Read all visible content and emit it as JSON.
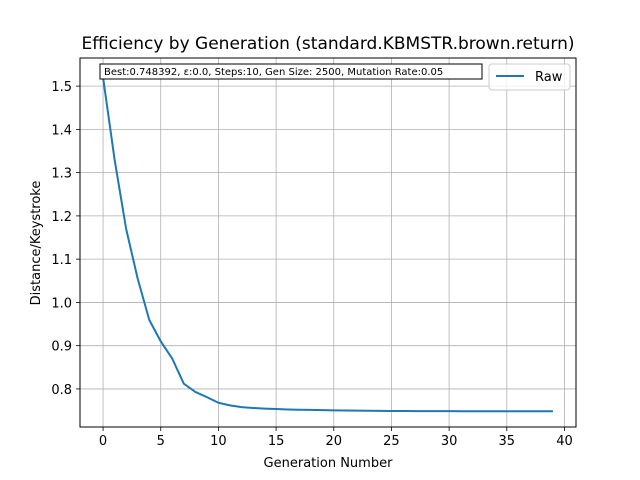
{
  "chart_data": {
    "type": "line",
    "title": "Efficiency by Generation (standard.KBMSTR.brown.return)",
    "xlabel": "Generation Number",
    "ylabel": "Distance/Keystroke",
    "xlim": [
      -2,
      41
    ],
    "ylim": [
      0.712,
      1.565
    ],
    "xticks": [
      0,
      5,
      10,
      15,
      20,
      25,
      30,
      35,
      40
    ],
    "yticks": [
      0.8,
      0.9,
      1.0,
      1.1,
      1.2,
      1.3,
      1.4,
      1.5
    ],
    "ytick_labels": [
      "0.8",
      "0.9",
      "1.0",
      "1.1",
      "1.2",
      "1.3",
      "1.4",
      "1.5"
    ],
    "grid": true,
    "legend_position": "top-right",
    "annotation": "Best:0.748392, ε:0.0, Steps:10, Gen Size: 2500, Mutation Rate:0.05",
    "series": [
      {
        "name": "Raw",
        "color": "#1f77b4",
        "x": [
          0,
          1,
          2,
          3,
          4,
          5,
          6,
          7,
          8,
          9,
          10,
          11,
          12,
          13,
          14,
          15,
          16,
          17,
          18,
          19,
          20,
          21,
          22,
          23,
          24,
          25,
          26,
          27,
          28,
          29,
          30,
          31,
          32,
          33,
          34,
          35,
          36,
          37,
          38,
          39
        ],
        "values": [
          1.52,
          1.33,
          1.17,
          1.055,
          0.96,
          0.91,
          0.87,
          0.812,
          0.793,
          0.781,
          0.768,
          0.762,
          0.758,
          0.756,
          0.7545,
          0.7535,
          0.7525,
          0.752,
          0.7515,
          0.751,
          0.7505,
          0.75,
          0.7498,
          0.7495,
          0.7492,
          0.749,
          0.7489,
          0.7488,
          0.7487,
          0.7486,
          0.7486,
          0.7485,
          0.7485,
          0.7485,
          0.7484,
          0.7484,
          0.7484,
          0.7484,
          0.7484,
          0.7484
        ]
      }
    ]
  }
}
